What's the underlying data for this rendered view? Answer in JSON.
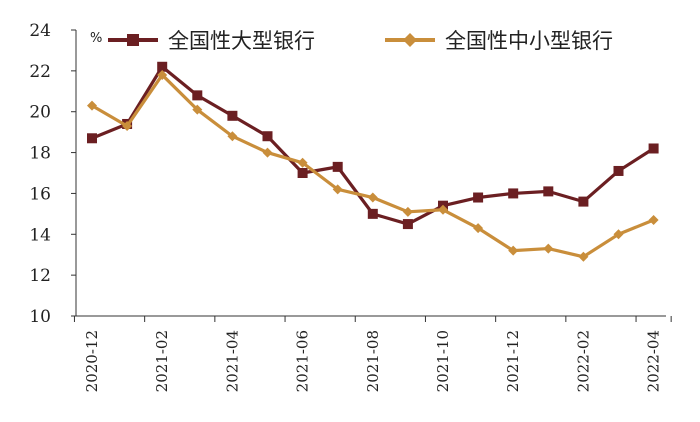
{
  "chart_data": {
    "type": "line",
    "unit_label": "%",
    "ylim": [
      10,
      24
    ],
    "yticks": [
      10,
      12,
      14,
      16,
      18,
      20,
      22,
      24
    ],
    "x": [
      "2020-12",
      "2021-01",
      "2021-02",
      "2021-03",
      "2021-04",
      "2021-05",
      "2021-06",
      "2021-07",
      "2021-08",
      "2021-09",
      "2021-10",
      "2021-11",
      "2021-12",
      "2022-01",
      "2022-02",
      "2022-03",
      "2022-04"
    ],
    "xtick_labels": [
      "2020-12",
      "2021-02",
      "2021-04",
      "2021-06",
      "2021-08",
      "2021-10",
      "2021-12",
      "2022-02",
      "2022-04"
    ],
    "grid": false,
    "legend_position": "top",
    "series": [
      {
        "name": "全国性大型银行",
        "color": "#6b1f22",
        "marker": "square",
        "values": [
          18.7,
          19.4,
          22.2,
          20.8,
          19.8,
          18.8,
          17.0,
          17.3,
          15.0,
          14.5,
          15.4,
          15.8,
          16.0,
          16.1,
          15.6,
          17.1,
          18.2
        ]
      },
      {
        "name": "全国性中小型银行",
        "color": "#c98e3b",
        "marker": "diamond",
        "values": [
          20.3,
          19.3,
          21.8,
          20.1,
          18.8,
          18.0,
          17.5,
          16.2,
          15.8,
          15.1,
          15.2,
          14.3,
          13.2,
          13.3,
          12.9,
          14.0,
          14.7
        ]
      }
    ]
  }
}
